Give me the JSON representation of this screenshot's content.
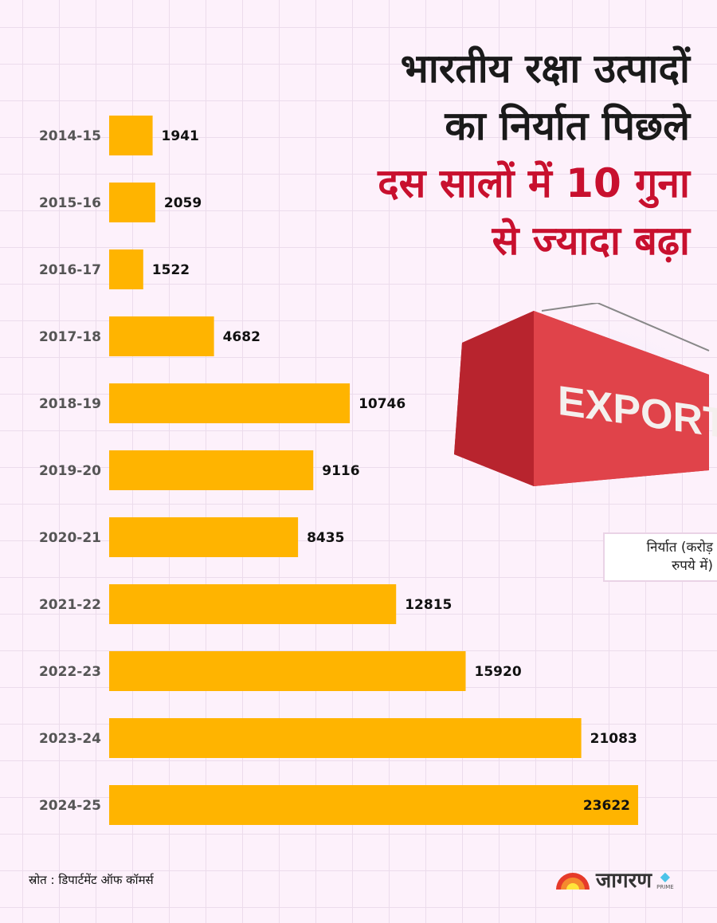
{
  "title": {
    "lines": [
      {
        "text": "भारतीय रक्षा उत्पादों",
        "color": "#1a1a1a"
      },
      {
        "text": "का निर्यात पिछले",
        "color": "#1a1a1a"
      },
      {
        "text": "दस सालों में 10 गुना",
        "color": "#c8102e"
      },
      {
        "text": "से ज्यादा बढ़ा",
        "color": "#c8102e"
      }
    ]
  },
  "illustration": {
    "container_text": "EXPORT"
  },
  "chart_data": {
    "type": "bar",
    "orientation": "horizontal",
    "categories": [
      "2014-15",
      "2015-16",
      "2016-17",
      "2017-18",
      "2018-19",
      "2019-20",
      "2020-21",
      "2021-22",
      "2022-23",
      "2023-24",
      "2024-25"
    ],
    "values": [
      1941,
      2059,
      1522,
      4682,
      10746,
      9116,
      8435,
      12815,
      15920,
      21083,
      23622
    ],
    "unit_label": "निर्यात (करोड़ रुपये में)",
    "bar_color": "#ffb400",
    "grid": false
  },
  "legend": {
    "line1": "निर्यात (करोड़",
    "line2": "रुपये में)"
  },
  "source": "स्रोत : डिपार्टमेंट ऑफ कॉमर्स",
  "logo": {
    "name": "जागरण",
    "sub": "PRIME"
  }
}
